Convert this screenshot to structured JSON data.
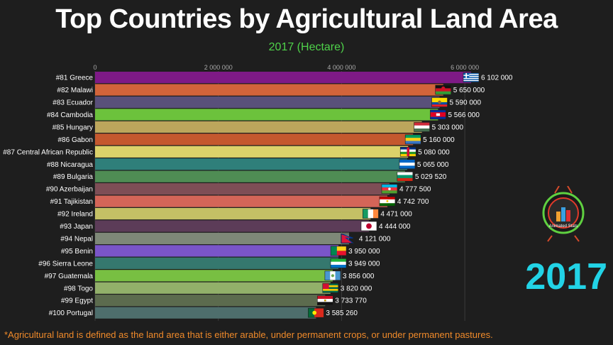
{
  "title": "Top Countries by Agricultural Land Area",
  "subtitle": "2017 (Hectare)",
  "year_label": "2017",
  "footnote": "*Agricultural land is defined as the land area that is either arable, under permanent crops, or under permanent pastures.",
  "logo_text": "Animated Stats",
  "chart_data": {
    "type": "bar",
    "orientation": "horizontal",
    "title": "Top Countries by Agricultural Land Area",
    "subtitle": "2017 (Hectare)",
    "xlim": [
      0,
      6102000
    ],
    "xticks": [
      0,
      2000000,
      4000000,
      6000000
    ],
    "xtick_labels": [
      "0",
      "2 000 000",
      "4 000 000",
      "6 000 000"
    ],
    "categories": [
      "#81 Greece",
      "#82 Malawi",
      "#83 Ecuador",
      "#84 Cambodia",
      "#85 Hungary",
      "#86 Gabon",
      "#87 Central African Republic",
      "#88 Nicaragua",
      "#89 Bulgaria",
      "#90 Azerbaijan",
      "#91 Tajikistan",
      "#92 Ireland",
      "#93 Japan",
      "#94 Nepal",
      "#95 Benin",
      "#96 Sierra Leone",
      "#97 Guatemala",
      "#98 Togo",
      "#99 Egypt",
      "#100 Portugal"
    ],
    "values": [
      6102000,
      5650000,
      5590000,
      5566000,
      5303000,
      5160000,
      5080000,
      5065000,
      5029520,
      4777500,
      4742700,
      4471000,
      4444000,
      4121000,
      3950000,
      3949000,
      3856000,
      3820000,
      3733770,
      3585260
    ],
    "value_labels": [
      "6 102 000",
      "5 650 000",
      "5 590 000",
      "5 566 000",
      "5 303 000",
      "5 160 000",
      "5 080 000",
      "5 065 000",
      "5 029 520",
      "4 777 500",
      "4 742 700",
      "4 471 000",
      "4 444 000",
      "4 121 000",
      "3 950 000",
      "3 949 000",
      "3 856 000",
      "3 820 000",
      "3 733 770",
      "3 585 260"
    ],
    "bar_colors": [
      "#7e1a86",
      "#d2643a",
      "#59507a",
      "#6cc23c",
      "#bca65c",
      "#c4582e",
      "#dcd26a",
      "#2f7f7a",
      "#4f8c54",
      "#7e4e56",
      "#d46558",
      "#c4c065",
      "#5c3c58",
      "#7e8878",
      "#7a55c9",
      "#35786e",
      "#78bf42",
      "#92b06a",
      "#5c6b4e",
      "#4e6e6c"
    ],
    "flags": [
      "greece",
      "malawi",
      "ecuador",
      "cambodia",
      "hungary",
      "gabon",
      "central-african-republic",
      "nicaragua",
      "bulgaria",
      "azerbaijan",
      "tajikistan",
      "ireland",
      "japan",
      "nepal",
      "benin",
      "sierra-leone",
      "guatemala",
      "togo",
      "egypt",
      "portugal"
    ]
  }
}
